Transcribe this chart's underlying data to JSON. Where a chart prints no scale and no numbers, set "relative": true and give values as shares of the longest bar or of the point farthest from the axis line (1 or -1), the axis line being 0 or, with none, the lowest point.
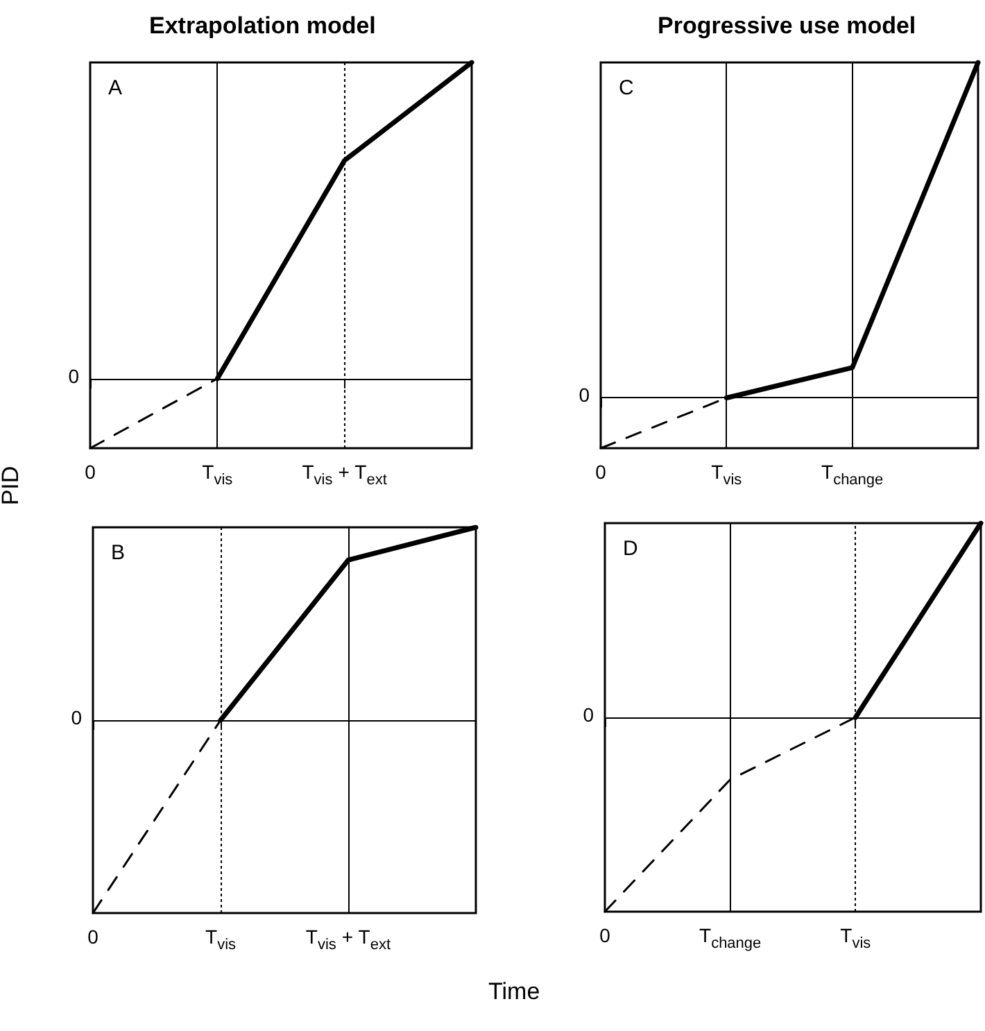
{
  "chart_data": [
    {
      "type": "line",
      "title": "A",
      "annotations": [
        "Extrapolation model"
      ],
      "ylabel": "PID",
      "relative": true,
      "categories": [
        "0",
        "T$_{vis}$",
        "T$_{vis}$ + T$_{ext}$",
        null
      ],
      "series": [
        {
          "color": "#000000",
          "line_style": "dashed",
          "values": [
            -0.22,
            0,
            null,
            null
          ]
        },
        {
          "color": "#000000",
          "values": [
            null,
            0,
            0.69,
            1
          ]
        }
      ],
      "ref_lines": [
        {
          "axis": "y",
          "value": 0,
          "label": "0"
        },
        {
          "axis": "x",
          "value": "T$_{vis}$"
        },
        {
          "axis": "x",
          "value": "T$_{vis}$ + T$_{ext}$",
          "line_style": "dotted"
        }
      ]
    },
    {
      "type": "line",
      "title": "B",
      "xlabel": "Time",
      "relative": true,
      "categories": [
        "0",
        "T$_{vis}$",
        "T$_{vis}$ + T$_{ext}$",
        null
      ],
      "series": [
        {
          "color": "#000000",
          "line_style": "dashed",
          "values": [
            -1,
            0,
            null,
            null
          ]
        },
        {
          "color": "#000000",
          "values": [
            null,
            0,
            0.83,
            1
          ]
        }
      ],
      "ref_lines": [
        {
          "axis": "y",
          "value": 0,
          "label": "0"
        },
        {
          "axis": "x",
          "value": "T$_{vis}$",
          "line_style": "dotted"
        },
        {
          "axis": "x",
          "value": "T$_{vis}$ + T$_{ext}$"
        }
      ]
    },
    {
      "type": "line",
      "title": "C",
      "annotations": [
        "Progressive use model"
      ],
      "relative": true,
      "categories": [
        "0",
        "T$_{vis}$",
        "T$_{change}$",
        null
      ],
      "series": [
        {
          "color": "#000000",
          "line_style": "dashed",
          "values": [
            -0.15,
            0,
            null,
            null
          ]
        },
        {
          "color": "#000000",
          "values": [
            null,
            0,
            0.09,
            1
          ]
        }
      ],
      "ref_lines": [
        {
          "axis": "y",
          "value": 0,
          "label": "0"
        },
        {
          "axis": "x",
          "value": "T$_{vis}$"
        },
        {
          "axis": "x",
          "value": "T$_{change}$"
        }
      ]
    },
    {
      "type": "line",
      "title": "D",
      "relative": true,
      "categories": [
        "0",
        "T$_{change}$",
        "T$_{vis}$",
        null
      ],
      "series": [
        {
          "color": "#000000",
          "line_style": "dashed",
          "values": [
            -1,
            -0.32,
            0,
            null
          ]
        },
        {
          "color": "#000000",
          "values": [
            null,
            null,
            0,
            1
          ]
        }
      ],
      "ref_lines": [
        {
          "axis": "y",
          "value": 0,
          "label": "0"
        },
        {
          "axis": "x",
          "value": "T$_{change}$"
        },
        {
          "axis": "x",
          "value": "T$_{vis}$",
          "line_style": "dotted"
        }
      ]
    }
  ]
}
